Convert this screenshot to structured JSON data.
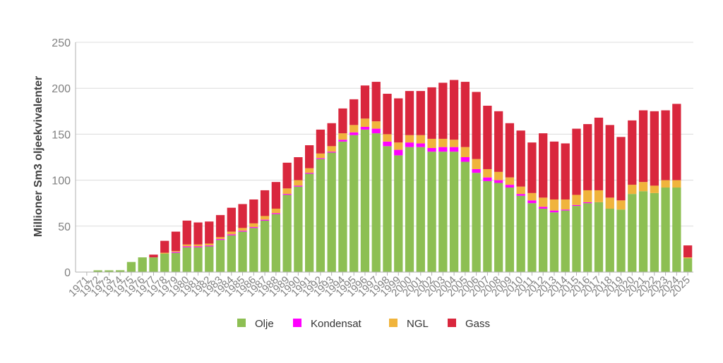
{
  "chart_data": {
    "type": "bar",
    "stacked": true,
    "ylabel": "Millioner Sm3 oljeekvivalenter",
    "xlabel": "",
    "ylim": [
      0,
      250
    ],
    "yticks": [
      0,
      50,
      100,
      150,
      200,
      250
    ],
    "grid": true,
    "legend_position": "bottom",
    "categories": [
      "1971",
      "1972",
      "1973",
      "1974",
      "1975",
      "1976",
      "1977",
      "1978",
      "1979",
      "1980",
      "1981",
      "1982",
      "1983",
      "1984",
      "1985",
      "1986",
      "1987",
      "1988",
      "1989",
      "1990",
      "1991",
      "1992",
      "1993",
      "1994",
      "1995",
      "1996",
      "1997",
      "1998",
      "1999",
      "2000",
      "2001",
      "2002",
      "2003",
      "2004",
      "2005",
      "2006",
      "2007",
      "2008",
      "2009",
      "2010",
      "2011",
      "2012",
      "2013",
      "2014",
      "2015",
      "2016",
      "2017",
      "2018",
      "2019",
      "2020",
      "2021",
      "2022",
      "2023",
      "2024",
      "2025"
    ],
    "series": [
      {
        "name": "Olje",
        "color": "#8dbf53",
        "values": [
          0.4,
          1.9,
          1.9,
          2,
          11,
          16,
          16,
          20,
          21,
          27,
          27,
          28,
          35,
          40,
          44,
          48,
          56,
          63,
          84,
          93,
          107,
          123,
          130,
          142,
          149,
          155,
          151,
          137,
          127,
          136,
          136,
          131,
          131,
          131,
          120,
          108,
          99,
          97,
          92,
          83,
          75,
          69,
          65,
          67,
          72,
          75,
          76,
          69,
          68,
          85,
          88,
          86,
          92,
          92,
          15
        ]
      },
      {
        "name": "Kondensat",
        "color": "#ff00ff",
        "values": [
          0,
          0,
          0,
          0,
          0,
          0,
          0,
          0,
          1,
          1,
          1,
          1,
          1,
          1,
          1,
          1,
          1,
          1,
          1,
          1,
          1,
          1,
          1,
          2,
          3,
          3,
          5,
          5,
          6,
          5,
          4,
          4,
          5,
          5,
          5,
          4,
          4,
          3,
          3,
          2,
          3,
          2,
          2,
          1,
          1,
          1,
          0,
          0,
          0,
          0,
          0,
          0,
          0,
          0,
          0
        ]
      },
      {
        "name": "NGL",
        "color": "#f0b43c",
        "values": [
          0,
          0,
          0,
          0,
          0,
          0,
          0,
          1,
          1,
          2,
          2,
          2,
          2,
          3,
          3,
          4,
          4,
          5,
          6,
          6,
          5,
          5,
          6,
          7,
          8,
          9,
          8,
          8,
          8,
          8,
          9,
          10,
          9,
          8,
          11,
          11,
          9,
          9,
          8,
          8,
          8,
          10,
          12,
          11,
          11,
          13,
          13,
          12,
          10,
          10,
          10,
          8,
          8,
          8,
          1
        ]
      },
      {
        "name": "Gass",
        "color": "#d9273d",
        "values": [
          0,
          0,
          0,
          0,
          0,
          0,
          3,
          13,
          21,
          26,
          24,
          24,
          24,
          26,
          26,
          26,
          28,
          29,
          28,
          25,
          25,
          26,
          25,
          27,
          28,
          36,
          43,
          44,
          48,
          48,
          48,
          56,
          61,
          65,
          71,
          73,
          69,
          66,
          59,
          61,
          55,
          70,
          63,
          61,
          72,
          72,
          79,
          79,
          69,
          70,
          78,
          81,
          76,
          83,
          13
        ]
      }
    ]
  }
}
